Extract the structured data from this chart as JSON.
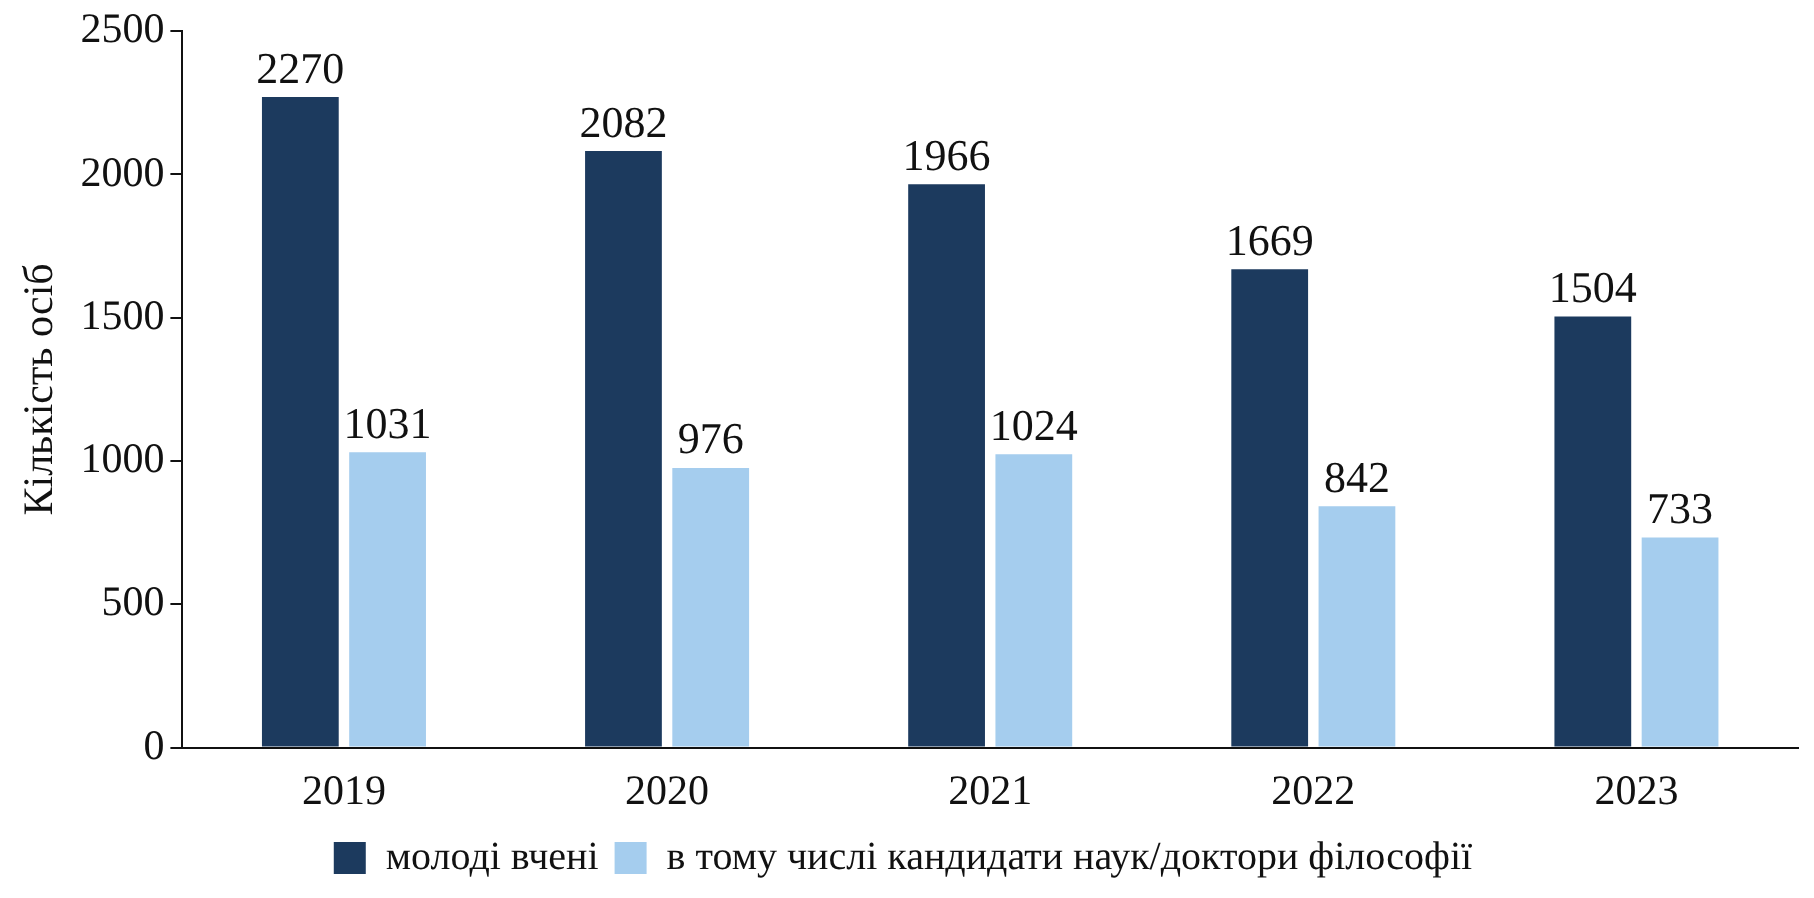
{
  "chart_data": {
    "type": "bar",
    "ylabel": "Кількість осіб",
    "categories": [
      "2019",
      "2020",
      "2021",
      "2022",
      "2023"
    ],
    "series": [
      {
        "name": "молоді вчені",
        "color": "#1c3a5e",
        "values": [
          2270,
          2082,
          1966,
          1669,
          1504
        ]
      },
      {
        "name": "в тому числі кандидати наук/доктори філософії",
        "color": "#a5cdee",
        "values": [
          1031,
          976,
          1024,
          842,
          733
        ]
      }
    ],
    "ylim": [
      0,
      2500
    ],
    "yticks": [
      0,
      500,
      1000,
      1500,
      2000,
      2500
    ],
    "legend": "bottom",
    "data_labels": true
  }
}
